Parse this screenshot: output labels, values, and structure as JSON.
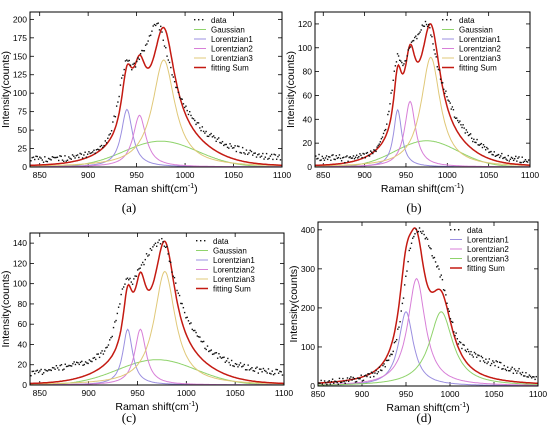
{
  "chart_data": [
    {
      "type": "line",
      "caption": "(a)",
      "xlabel": "Raman shift(cm",
      "xlabel_sup": "-1",
      "xlabel_end": ")",
      "ylabel": "Intensity(counts)",
      "xlim": [
        840,
        1100
      ],
      "ylim": [
        0,
        210
      ],
      "xticks": [
        850,
        900,
        950,
        1000,
        1050,
        1100
      ],
      "yticks": [
        0,
        25,
        50,
        75,
        100,
        125,
        150,
        175,
        200
      ],
      "legend_position": "top-right",
      "data_series": {
        "name": "data",
        "x": [
          845,
          855,
          865,
          875,
          885,
          895,
          905,
          915,
          920,
          925,
          930,
          935,
          940,
          945,
          950,
          955,
          960,
          965,
          970,
          975,
          980,
          985,
          990,
          995,
          1000,
          1005,
          1010,
          1020,
          1030,
          1040,
          1050,
          1060,
          1070,
          1080,
          1090,
          1098
        ],
        "y": [
          12,
          10,
          13,
          11,
          14,
          16,
          20,
          28,
          38,
          55,
          82,
          120,
          148,
          135,
          140,
          155,
          165,
          182,
          195,
          188,
          160,
          135,
          110,
          95,
          82,
          72,
          62,
          48,
          40,
          32,
          26,
          22,
          18,
          15,
          14,
          12
        ]
      },
      "components": [
        {
          "name": "Gaussian",
          "shape": "gaussian",
          "center": 975,
          "height": 35,
          "width": 38,
          "color": "#8fd36b"
        },
        {
          "name": "Lorentzian1",
          "shape": "lorentzian",
          "center": 940,
          "height": 78,
          "width": 7,
          "color": "#9b8fe0"
        },
        {
          "name": "Lorentzian2",
          "shape": "lorentzian",
          "center": 953,
          "height": 70,
          "width": 8,
          "color": "#d87fd8"
        },
        {
          "name": "Lorentzian3",
          "shape": "lorentzian",
          "center": 978,
          "height": 145,
          "width": 14,
          "color": "#e0c878"
        }
      ],
      "sum": {
        "name": "fitting Sum",
        "color": "#c41a12"
      }
    },
    {
      "type": "line",
      "caption": "(b)",
      "xlabel": "Raman shift(cm",
      "xlabel_sup": "-1",
      "xlabel_end": ")",
      "ylabel": "Intensity(counts)",
      "xlim": [
        840,
        1100
      ],
      "ylim": [
        0,
        130
      ],
      "xticks": [
        850,
        900,
        950,
        1000,
        1050,
        1100
      ],
      "yticks": [
        0,
        20,
        40,
        60,
        80,
        100,
        120
      ],
      "legend_position": "top-right",
      "data_series": {
        "name": "data",
        "x": [
          845,
          855,
          865,
          875,
          885,
          895,
          905,
          915,
          920,
          925,
          930,
          935,
          940,
          945,
          950,
          955,
          960,
          965,
          970,
          975,
          980,
          985,
          990,
          995,
          1000,
          1005,
          1010,
          1020,
          1030,
          1040,
          1050,
          1060,
          1070,
          1080,
          1090,
          1098
        ],
        "y": [
          8,
          7,
          9,
          6,
          8,
          9,
          11,
          16,
          22,
          32,
          50,
          75,
          95,
          85,
          90,
          102,
          108,
          110,
          118,
          122,
          112,
          95,
          80,
          68,
          58,
          50,
          42,
          32,
          24,
          18,
          14,
          10,
          8,
          7,
          6,
          5
        ]
      },
      "components": [
        {
          "name": "Gaussian",
          "shape": "gaussian",
          "center": 975,
          "height": 22,
          "width": 38,
          "color": "#8fd36b"
        },
        {
          "name": "Lorentzian1",
          "shape": "lorentzian",
          "center": 940,
          "height": 48,
          "width": 6,
          "color": "#9b8fe0"
        },
        {
          "name": "Lorentzian2",
          "shape": "lorentzian",
          "center": 955,
          "height": 55,
          "width": 8,
          "color": "#d87fd8"
        },
        {
          "name": "Lorentzian3",
          "shape": "lorentzian",
          "center": 980,
          "height": 92,
          "width": 14,
          "color": "#e0c878"
        }
      ],
      "sum": {
        "name": "fitting Sum",
        "color": "#c41a12"
      }
    },
    {
      "type": "line",
      "caption": "(c)",
      "xlabel": "Raman shift(cm",
      "xlabel_sup": "-1",
      "xlabel_end": ")",
      "ylabel": "Intensity(counts)",
      "xlim": [
        840,
        1100
      ],
      "ylim": [
        0,
        150
      ],
      "xticks": [
        850,
        900,
        950,
        1000,
        1050,
        1100
      ],
      "yticks": [
        0,
        20,
        40,
        60,
        80,
        100,
        120,
        140
      ],
      "legend_position": "top-right",
      "data_series": {
        "name": "data",
        "x": [
          845,
          855,
          865,
          875,
          885,
          895,
          905,
          915,
          920,
          925,
          930,
          935,
          940,
          945,
          950,
          955,
          960,
          965,
          970,
          975,
          980,
          985,
          990,
          995,
          1000,
          1005,
          1010,
          1020,
          1030,
          1040,
          1050,
          1060,
          1070,
          1080,
          1090,
          1098
        ],
        "y": [
          12,
          14,
          16,
          18,
          20,
          22,
          26,
          32,
          40,
          52,
          72,
          95,
          108,
          100,
          112,
          118,
          128,
          136,
          140,
          142,
          135,
          115,
          95,
          80,
          68,
          58,
          50,
          38,
          30,
          25,
          20,
          18,
          15,
          14,
          13,
          12
        ]
      },
      "components": [
        {
          "name": "Gaussian",
          "shape": "gaussian",
          "center": 970,
          "height": 25,
          "width": 40,
          "color": "#8fd36b"
        },
        {
          "name": "Lorentzian1",
          "shape": "lorentzian",
          "center": 940,
          "height": 55,
          "width": 6,
          "color": "#9b8fe0"
        },
        {
          "name": "Lorentzian2",
          "shape": "lorentzian",
          "center": 953,
          "height": 55,
          "width": 7,
          "color": "#d87fd8"
        },
        {
          "name": "Lorentzian3",
          "shape": "lorentzian",
          "center": 978,
          "height": 112,
          "width": 13,
          "color": "#e0c878"
        }
      ],
      "sum": {
        "name": "fitting Sum",
        "color": "#c41a12"
      }
    },
    {
      "type": "line",
      "caption": "(d)",
      "xlabel": "Raman shift(cm",
      "xlabel_sup": "-1",
      "xlabel_end": ")",
      "ylabel": "Intensity(counts)",
      "xlim": [
        850,
        1100
      ],
      "ylim": [
        0,
        420
      ],
      "xticks": [
        850,
        900,
        950,
        1000,
        1050,
        1100
      ],
      "yticks": [
        0,
        100,
        200,
        300,
        400
      ],
      "legend_position": "top-right",
      "data_series": {
        "name": "data",
        "x": [
          855,
          870,
          885,
          900,
          910,
          920,
          930,
          935,
          940,
          945,
          950,
          955,
          960,
          965,
          970,
          975,
          980,
          985,
          990,
          995,
          1000,
          1005,
          1010,
          1020,
          1030,
          1040,
          1050,
          1060,
          1070,
          1080,
          1090,
          1100
        ],
        "y": [
          8,
          10,
          14,
          20,
          28,
          40,
          65,
          90,
          130,
          190,
          280,
          360,
          395,
          398,
          390,
          370,
          340,
          310,
          280,
          230,
          180,
          140,
          110,
          90,
          75,
          65,
          58,
          50,
          42,
          35,
          25,
          18
        ]
      },
      "components": [
        {
          "name": "Lorentzian1",
          "shape": "lorentzian",
          "center": 950,
          "height": 190,
          "width": 10,
          "color": "#9b8fe0"
        },
        {
          "name": "Lorentzian2",
          "shape": "lorentzian",
          "center": 962,
          "height": 275,
          "width": 12,
          "color": "#d87fd8"
        },
        {
          "name": "Lorentzian3",
          "shape": "lorentzian",
          "center": 990,
          "height": 190,
          "width": 16,
          "color": "#8fd36b"
        }
      ],
      "sum": {
        "name": "fitting Sum",
        "color": "#c41a12"
      }
    }
  ]
}
